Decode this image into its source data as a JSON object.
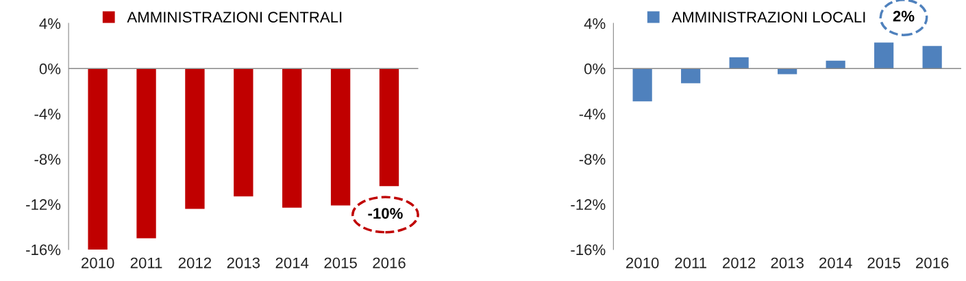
{
  "chart_data": [
    {
      "type": "bar",
      "categories": [
        "2010",
        "2011",
        "2012",
        "2013",
        "2014",
        "2015",
        "2016"
      ],
      "series": [
        {
          "name": "AMMINISTRAZIONI CENTRALI",
          "color": "#c00000",
          "values": [
            -16.0,
            -15.0,
            -12.4,
            -11.3,
            -12.3,
            -12.1,
            -10.4
          ]
        }
      ],
      "ylim": [
        -16,
        4
      ],
      "yticks": [
        {
          "value": -16,
          "label": "-16%"
        },
        {
          "value": -12,
          "label": "-12%"
        },
        {
          "value": -8,
          "label": "-8%"
        },
        {
          "value": -4,
          "label": "-4%"
        },
        {
          "value": 0,
          "label": "0%"
        },
        {
          "value": 4,
          "label": "4%"
        }
      ],
      "annotations": [
        {
          "text": "-10%",
          "x": "2016",
          "y": -10.4
        }
      ],
      "ref_lines": [
        {
          "axis": "y",
          "value": 0,
          "color": "#888888"
        }
      ],
      "legend": "top left",
      "grid": false
    },
    {
      "type": "bar",
      "categories": [
        "2010",
        "2011",
        "2012",
        "2013",
        "2014",
        "2015",
        "2016"
      ],
      "series": [
        {
          "name": "AMMINISTRAZIONI LOCALI",
          "color": "#4f81bd",
          "values": [
            -2.9,
            -1.3,
            1.0,
            -0.5,
            0.7,
            2.3,
            2.0
          ]
        }
      ],
      "ylim": [
        -16,
        4
      ],
      "yticks": [
        {
          "value": -16,
          "label": "-16%"
        },
        {
          "value": -12,
          "label": "-12%"
        },
        {
          "value": -8,
          "label": "-8%"
        },
        {
          "value": -4,
          "label": "-4%"
        },
        {
          "value": 0,
          "label": "0%"
        },
        {
          "value": 4,
          "label": "4%"
        }
      ],
      "annotations": [
        {
          "text": "2%",
          "x": "2016",
          "y": 2.0
        }
      ],
      "ref_lines": [
        {
          "axis": "y",
          "value": 0,
          "color": "#888888"
        }
      ],
      "legend": "top left",
      "grid": false
    }
  ]
}
